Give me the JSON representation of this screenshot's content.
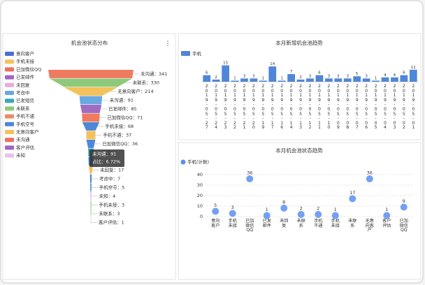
{
  "chart_data": [
    {
      "type": "funnel",
      "title": "机会池状态分布",
      "legend": [
        {
          "name": "意向客户",
          "color": "#4a6fd8"
        },
        {
          "name": "手机未接",
          "color": "#f5c15a"
        },
        {
          "name": "已加微信QQ",
          "color": "#ee6f5a"
        },
        {
          "name": "已发邮件",
          "color": "#9e65c5"
        },
        {
          "name": "未回复",
          "color": "#e9a9d9"
        },
        {
          "name": "考虑中",
          "color": "#6aa8e0"
        },
        {
          "name": "已发短信",
          "color": "#3aa9b5"
        },
        {
          "name": "未联系",
          "color": "#8dc97a"
        },
        {
          "name": "手机不通",
          "color": "#ee8a6c"
        },
        {
          "name": "手机空号",
          "color": "#4f86d8"
        },
        {
          "name": "无意向客户",
          "color": "#f5c15a"
        },
        {
          "name": "未沟通",
          "color": "#ee6f5a"
        },
        {
          "name": "客户评估",
          "color": "#9e65c5"
        },
        {
          "name": "未知",
          "color": "#e9c3e6"
        }
      ],
      "categories": [
        "未沟通",
        "未联系",
        "无意向客户",
        "未沟通",
        "已发邮件",
        "已加微信QQ",
        "手机未接",
        "手机不通",
        "已加微信QQ",
        null,
        null,
        "未回复",
        "考虑中",
        "手机空号",
        "未知",
        "手机未接",
        "未联系",
        "客户评估"
      ],
      "values": [
        341,
        330,
        214,
        91,
        85,
        71,
        68,
        37,
        36,
        22,
        20,
        17,
        7,
        5,
        4,
        3,
        3,
        1
      ],
      "value_labels": [
        "未沟通：341",
        "未联系：330",
        "无意向客户：214",
        "未沟通：91",
        "已发邮件：85",
        "已加微信QQ：71",
        "手机未接：68",
        "手机不通：37",
        "已加微信QQ：36",
        "：22",
        "：20",
        "未回复：17",
        "考虑中：7",
        "手机空号：5",
        "未知：4",
        "手机未接：3",
        "未联系：3",
        "客户评估：1"
      ],
      "colors": [
        "#ee7a5f",
        "#8dc97a",
        "#f5c15a",
        "#6aa8e0",
        "#a16bc4",
        "#ee7a5f",
        "#4f86d8",
        "#f5c15a",
        "#4f86d8",
        "#3aa9b5",
        "#4f86d8",
        "#f5c15a",
        "#4f86d8",
        "#4f86d8",
        "#e9a9d9",
        "#8dc97a",
        "#8dc97a",
        "#a16bc4"
      ],
      "tooltip": [
        "未沟通：91",
        "占比：6.72%"
      ]
    },
    {
      "type": "bar",
      "title": "本月新增机会池趋势",
      "categories": [
        "2019-05-27",
        "2019-05-24",
        "2019-05-23",
        "2019-05-22",
        "2019-05-21",
        "2019-05-20",
        "2019-05-19",
        "2019-05-17",
        "2019-05-16",
        "2019-05-14",
        "2019-05-13",
        "2019-05-12",
        "2019-05-11",
        "2019-05-10",
        "2019-05-09",
        "2019-05-08",
        "2019-05-07",
        "2019-05-06",
        "2019-05-05",
        "2019-05-04",
        "2019-05-03",
        "2019-05-02",
        "2019-05-01"
      ],
      "series": [
        {
          "name": "手机",
          "color": "#4f86d8",
          "values": [
            6,
            2,
            15,
            1,
            3,
            3,
            1,
            14,
            1,
            7,
            2,
            3,
            6,
            3,
            3,
            3,
            5,
            3,
            1,
            4,
            4,
            6,
            11
          ]
        }
      ],
      "ylim": [
        0,
        16
      ]
    },
    {
      "type": "scatter",
      "title": "本月机会池状态趋势",
      "categories": [
        "意向客户",
        "手机未接",
        "已加微信QQ",
        "已发邮件",
        "未回复",
        "未联系",
        "手机不通",
        "手机未接",
        "未联系",
        "无意向客户",
        "客户评估",
        "已加微信QQ"
      ],
      "series": [
        {
          "name": "手机(计数)",
          "color": "#5b8ff0",
          "values": [
            5,
            3,
            36,
            1,
            8,
            2,
            2,
            1,
            17,
            36,
            1,
            9
          ]
        }
      ],
      "ylim": [
        0,
        40
      ],
      "yticks": [
        0,
        10,
        20,
        30,
        40
      ],
      "grid": true
    }
  ]
}
